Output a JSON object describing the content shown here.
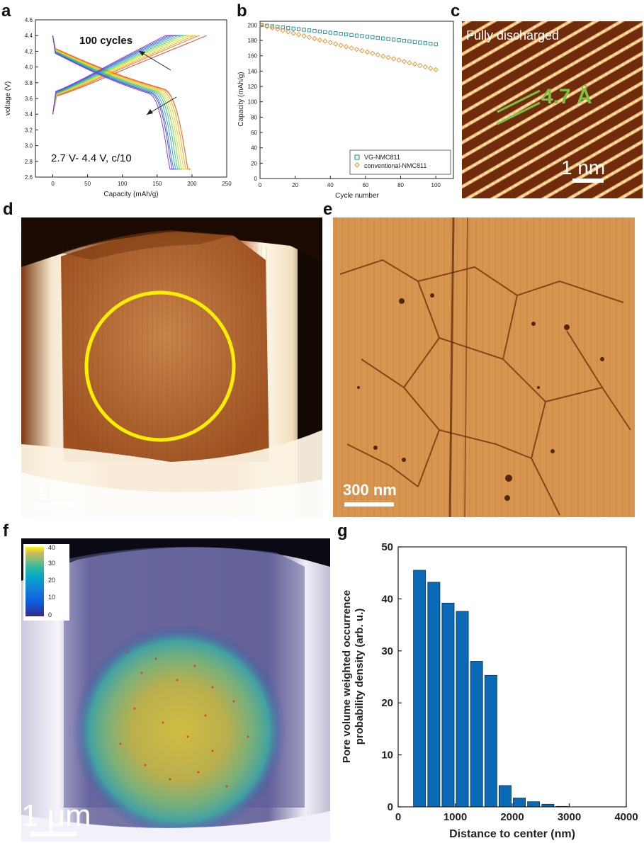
{
  "panels": {
    "a": {
      "letter": "a",
      "ylabel": "voltage (V)",
      "xlabel": "Capacity (mAh/g)",
      "annotation_cycles": "100 cycles",
      "annotation_conditions": "2.7 V- 4.4 V, c/10"
    },
    "b": {
      "letter": "b",
      "ylabel": "Capacity (mAh/g)",
      "xlabel": "Cycle number"
    },
    "c": {
      "letter": "c",
      "title": "Fully discharged",
      "spacing_label": "4.7 Å",
      "scalebar_label": "1 nm"
    },
    "d": {
      "letter": "d",
      "scalebar_label": "1 μm"
    },
    "e": {
      "letter": "e",
      "scalebar_label": "300 nm"
    },
    "f": {
      "letter": "f",
      "scalebar_label": "1 μm",
      "colorbar_ticks": [
        "40",
        "30",
        "20",
        "10",
        "0"
      ]
    },
    "g": {
      "letter": "g",
      "ylabel_line1": "Pore volume weighted occurrence",
      "ylabel_line2": "probability density (arb. u.)",
      "xlabel": "Distance to center (nm)"
    }
  },
  "colors": {
    "bar_fill": "#0a6ab6",
    "vg_series": "#1a8a8a",
    "conventional_series": "#f08a24",
    "circle": "#ffee00",
    "lattice_label": "#7cc242"
  },
  "chart_data": [
    {
      "id": "a",
      "type": "line",
      "title": "",
      "xlabel": "Capacity (mAh/g)",
      "ylabel": "voltage (V)",
      "xlim": [
        -25,
        250
      ],
      "ylim": [
        2.6,
        4.6
      ],
      "xticks": [
        0,
        50,
        100,
        150,
        200,
        250
      ],
      "yticks": [
        2.6,
        2.8,
        3.0,
        3.2,
        3.4,
        3.6,
        3.8,
        4.0,
        4.2,
        4.4,
        4.6
      ],
      "curves": {
        "count": 11,
        "colors": [
          "#e8443a",
          "#f07a28",
          "#f6a623",
          "#f4d02c",
          "#c6df2c",
          "#7cd34a",
          "#3fbf8a",
          "#2fa8c8",
          "#3a7ad8",
          "#5a4fd8",
          "#8a3fd0"
        ],
        "charge_end_capacity": [
          221,
          211,
          206,
          201,
          196,
          192,
          188,
          184,
          181,
          178,
          175
        ],
        "discharge_end_capacity": [
          198,
          198,
          195,
          192,
          189,
          186,
          183,
          180,
          177,
          175,
          172
        ]
      }
    },
    {
      "id": "b",
      "type": "scatter",
      "title": "",
      "xlabel": "Cycle number",
      "ylabel": "Capacity (mAh/g)",
      "xlim": [
        0,
        110
      ],
      "ylim": [
        0,
        205
      ],
      "xticks": [
        0,
        20,
        40,
        60,
        80,
        100
      ],
      "yticks": [
        0,
        20,
        40,
        60,
        80,
        100,
        120,
        140,
        160,
        180,
        200
      ],
      "legend_position": "bottom-right",
      "series": [
        {
          "name": "VG-NMC811",
          "x_start": 1,
          "x_end": 100,
          "y_start": 200,
          "y_end": 175,
          "marker": "square"
        },
        {
          "name": "conventional-NMC811",
          "x_start": 1,
          "x_end": 100,
          "y_start": 200,
          "y_end": 142,
          "marker": "diamond"
        }
      ]
    },
    {
      "id": "g",
      "type": "bar",
      "title": "",
      "xlabel": "Distance to center (nm)",
      "ylabel": "Pore volume weighted occurrence probability density (arb. u.)",
      "xlim": [
        0,
        4000
      ],
      "ylim": [
        0,
        50
      ],
      "xticks": [
        0,
        1000,
        2000,
        3000,
        4000
      ],
      "yticks": [
        0,
        10,
        20,
        30,
        40,
        50
      ],
      "bin_width": 250,
      "x": [
        375,
        625,
        875,
        1125,
        1375,
        1625,
        1875,
        2125,
        2375,
        2625,
        2875,
        3125,
        3375,
        3625
      ],
      "values": [
        45.5,
        43.2,
        39.2,
        37.6,
        28.0,
        25.3,
        4.1,
        1.7,
        1.0,
        0.5,
        0.1,
        0,
        0,
        0
      ]
    }
  ]
}
